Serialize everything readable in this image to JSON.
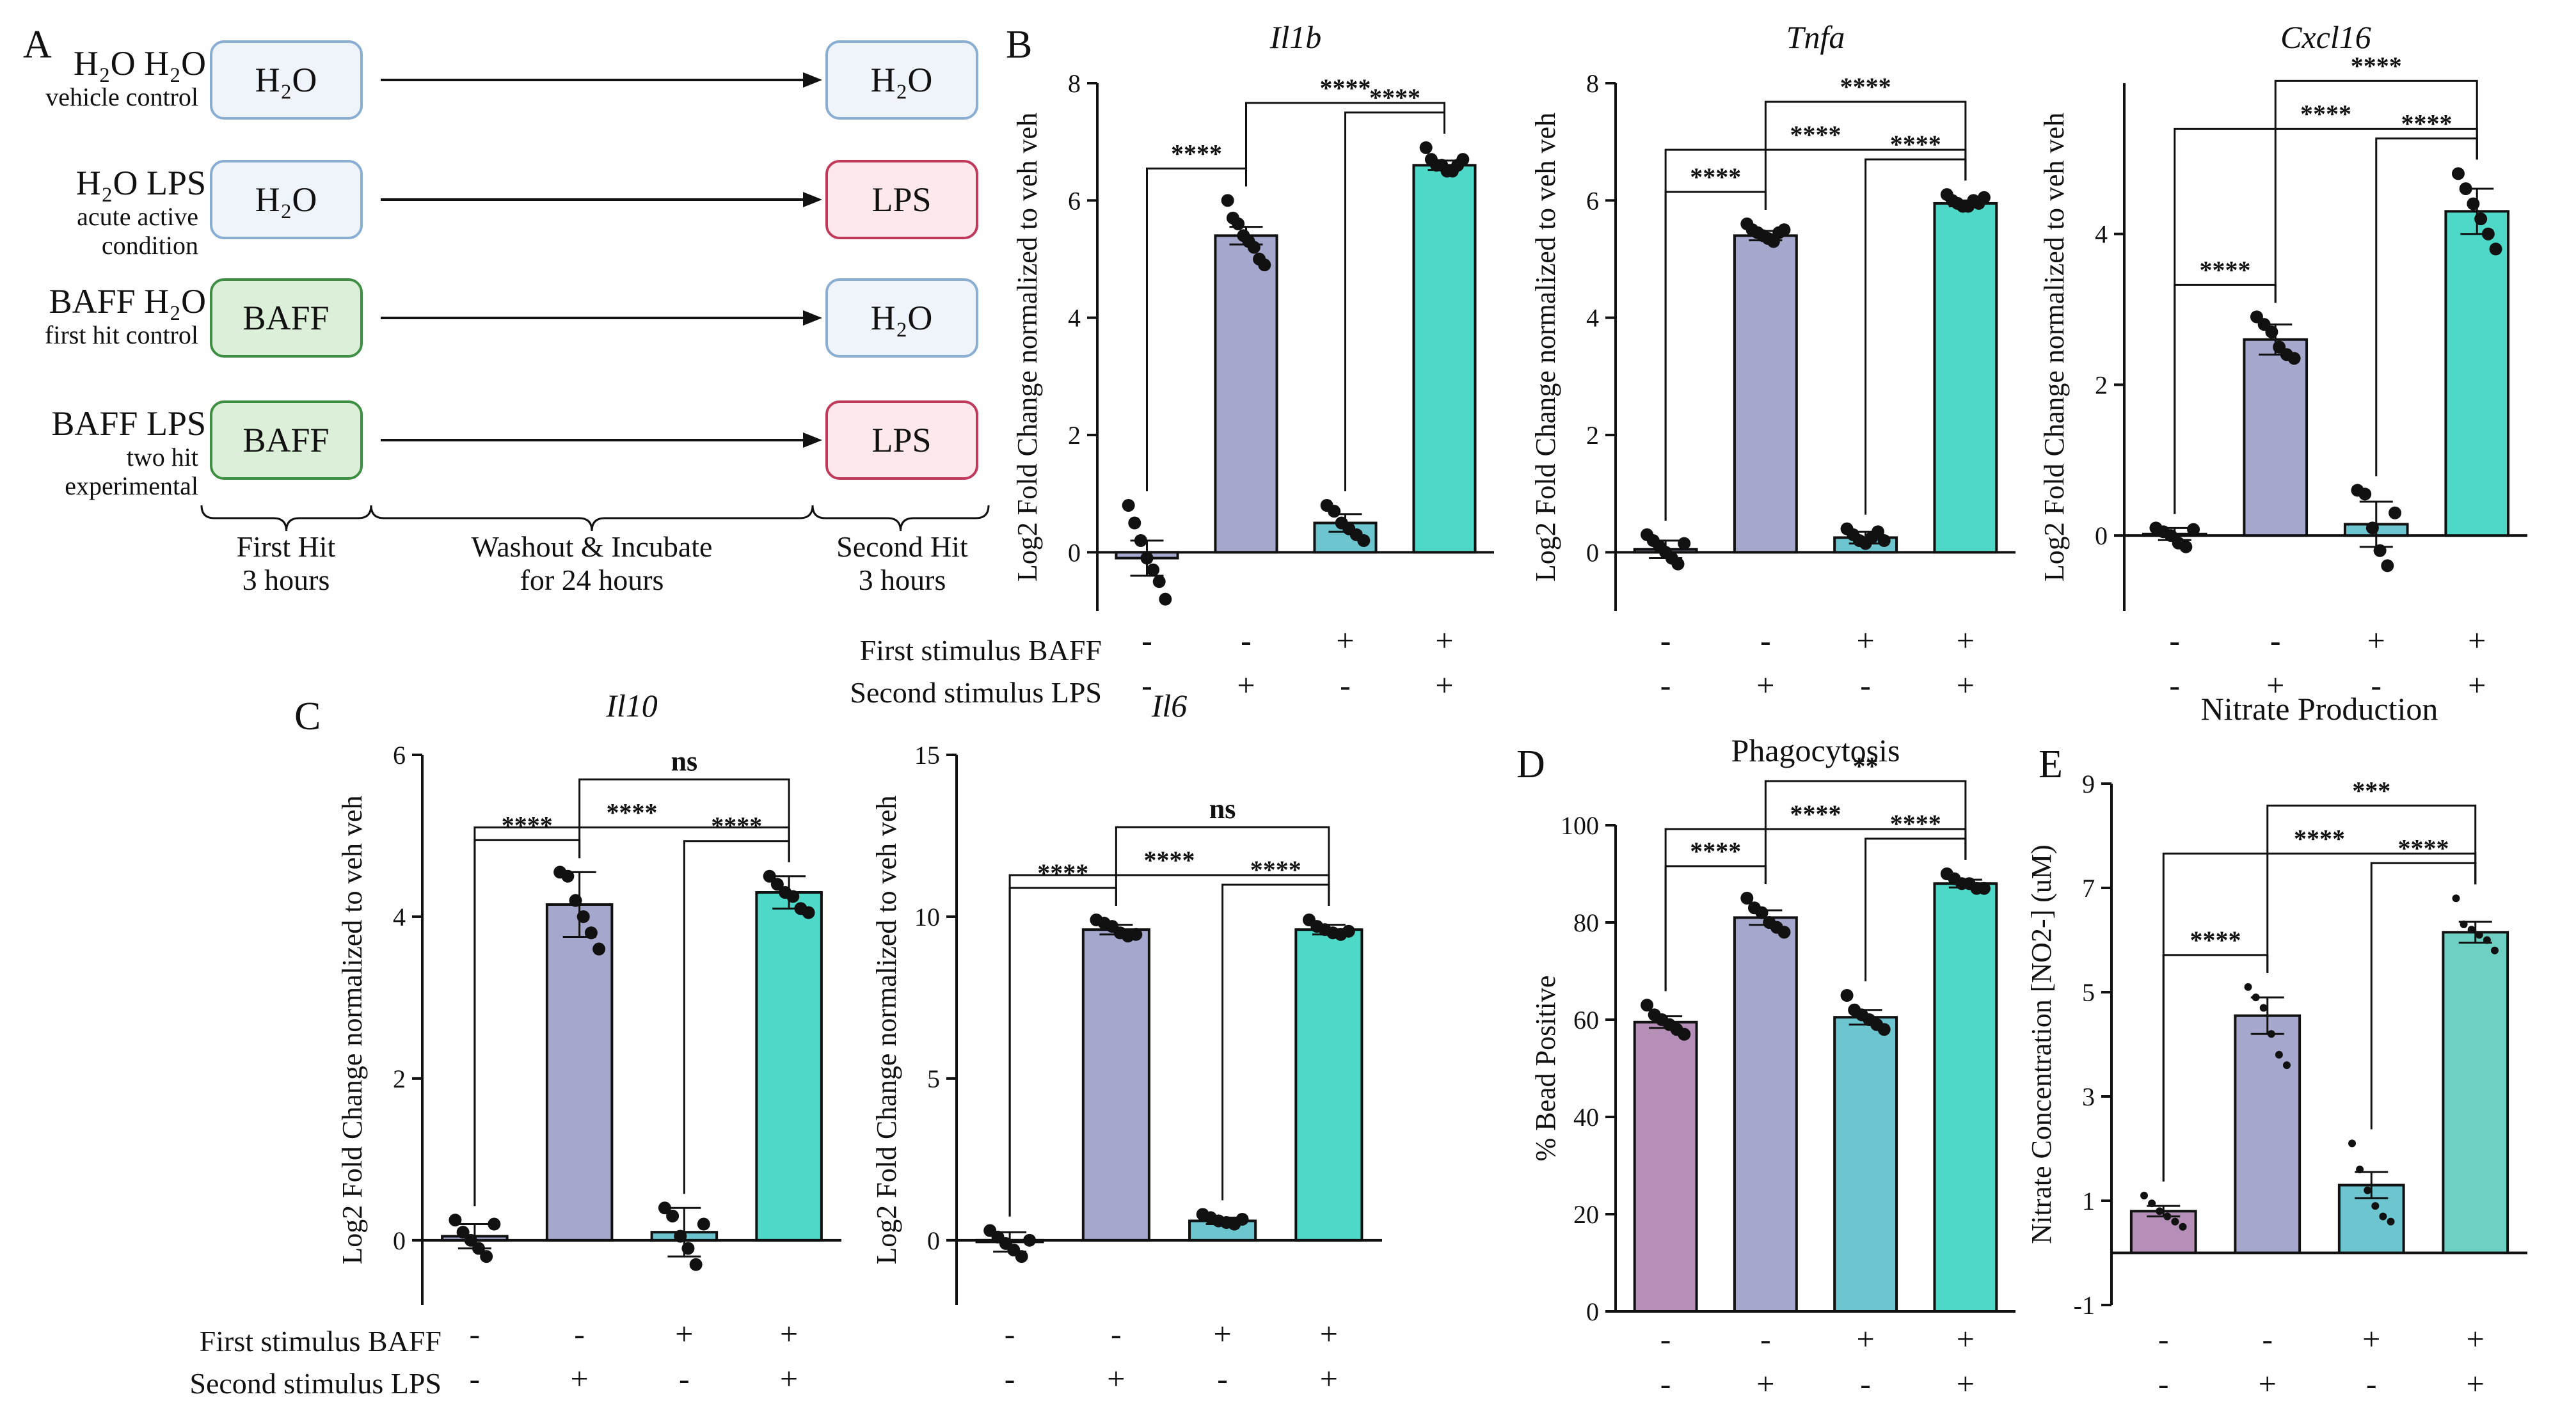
{
  "colors": {
    "h2o_fill": "#eef4fa",
    "h2o_stroke": "#8aaed2",
    "lps_fill": "#fde8ec",
    "lps_stroke": "#c0395a",
    "baff_fill": "#dcefd8",
    "baff_stroke": "#3e8e44",
    "bar_a": "#a5a7cc",
    "bar_b": "#6cc5cf",
    "bar_c": "#4ed8c8",
    "bar_purple": "#b68fb8",
    "bar_teal_soft": "#6ed0c2"
  },
  "panel_a": {
    "letter": "A",
    "rows": [
      {
        "cond": "H₂O H₂O",
        "desc": "vehicle control",
        "desc2": "",
        "first": "H₂O",
        "second": "H₂O",
        "first_kind": "h2o",
        "second_kind": "h2o"
      },
      {
        "cond": "H₂O LPS",
        "desc": "acute active",
        "desc2": "condition",
        "first": "H₂O",
        "second": "LPS",
        "first_kind": "h2o",
        "second_kind": "lps"
      },
      {
        "cond": "BAFF H₂O",
        "desc": "first hit control",
        "desc2": "",
        "first": "BAFF",
        "second": "H₂O",
        "first_kind": "baff",
        "second_kind": "h2o"
      },
      {
        "cond": "BAFF LPS",
        "desc": "two hit",
        "desc2": "experimental",
        "first": "BAFF",
        "second": "LPS",
        "first_kind": "baff",
        "second_kind": "lps"
      }
    ],
    "phases": [
      {
        "line1": "First Hit",
        "line2": "3 hours"
      },
      {
        "line1": "Washout & Incubate",
        "line2": "for 24 hours"
      },
      {
        "line1": "Second Hit",
        "line2": "3 hours"
      }
    ]
  },
  "labels": {
    "panel_b": "B",
    "panel_c": "C",
    "panel_d": "D",
    "panel_e": "E",
    "row1_label": "First stimulus BAFF",
    "row2_label": "Second stimulus LPS",
    "first_signs": [
      "-",
      "-",
      "+",
      "+"
    ],
    "second_signs": [
      "-",
      "+",
      "-",
      "+"
    ]
  },
  "chart_data": [
    {
      "id": "il1b",
      "type": "bar",
      "title": "Il1b",
      "title_italic": true,
      "ylabel": "Log2 Fold Change normalized to veh veh",
      "categories": [
        "BAFF- LPS-",
        "BAFF- LPS+",
        "BAFF+ LPS-",
        "BAFF+ LPS+"
      ],
      "values": [
        -0.1,
        5.4,
        0.5,
        6.6
      ],
      "errors": [
        0.3,
        0.15,
        0.15,
        0.08
      ],
      "ylim": [
        -1,
        8
      ],
      "yticks": [
        0,
        2,
        4,
        6,
        8
      ],
      "yticklabels": [
        "0",
        "2",
        "4",
        "6",
        "8"
      ],
      "zero_line": 0,
      "points": [
        [
          0.8,
          0.5,
          0.2,
          -0.1,
          -0.3,
          -0.5,
          -0.8
        ],
        [
          6.0,
          5.7,
          5.6,
          5.4,
          5.3,
          5.2,
          5.0,
          4.9
        ],
        [
          0.8,
          0.7,
          0.5,
          0.4,
          0.3,
          0.2
        ],
        [
          6.9,
          6.7,
          6.6,
          6.6,
          6.5,
          6.5,
          6.6,
          6.7
        ]
      ],
      "brackets": [
        {
          "a": 0,
          "b": 1,
          "label": "****"
        },
        {
          "a": 1,
          "b": 3,
          "label": "****"
        },
        {
          "a": 2,
          "b": 3,
          "label": "****"
        }
      ]
    },
    {
      "id": "tnfa",
      "type": "bar",
      "title": "Tnfa",
      "title_italic": true,
      "ylabel": "Log2 Fold Change normalized to veh veh",
      "categories": [
        "BAFF- LPS-",
        "BAFF- LPS+",
        "BAFF+ LPS-",
        "BAFF+ LPS+"
      ],
      "values": [
        0.05,
        5.4,
        0.25,
        5.95
      ],
      "errors": [
        0.15,
        0.08,
        0.1,
        0.05
      ],
      "ylim": [
        -1,
        8
      ],
      "yticks": [
        0,
        2,
        4,
        6,
        8
      ],
      "yticklabels": [
        "0",
        "2",
        "4",
        "6",
        "8"
      ],
      "zero_line": 0,
      "points": [
        [
          0.3,
          0.2,
          0.1,
          0.0,
          -0.1,
          -0.2,
          0.15
        ],
        [
          5.6,
          5.5,
          5.45,
          5.4,
          5.35,
          5.3,
          5.45,
          5.5
        ],
        [
          0.4,
          0.3,
          0.2,
          0.15,
          0.25,
          0.35,
          0.2
        ],
        [
          6.1,
          6.0,
          5.95,
          5.9,
          5.9,
          6.0,
          5.95,
          6.05
        ]
      ],
      "brackets": [
        {
          "a": 0,
          "b": 1,
          "label": "****"
        },
        {
          "a": 0,
          "b": 3,
          "label": "****"
        },
        {
          "a": 1,
          "b": 3,
          "label": "****"
        },
        {
          "a": 2,
          "b": 3,
          "label": "****"
        }
      ]
    },
    {
      "id": "cxcl16",
      "type": "bar",
      "title": "Cxcl16",
      "title_italic": true,
      "ylabel": "Log2 Fold Change normalized to veh veh",
      "categories": [
        "BAFF- LPS-",
        "BAFF- LPS+",
        "BAFF+ LPS-",
        "BAFF+ LPS+"
      ],
      "values": [
        0.02,
        2.6,
        0.15,
        4.3
      ],
      "errors": [
        0.08,
        0.2,
        0.3,
        0.3
      ],
      "ylim": [
        -1,
        6
      ],
      "yticks": [
        0,
        2,
        4
      ],
      "yticklabels": [
        "0",
        "2",
        "4"
      ],
      "zero_line": 0,
      "points": [
        [
          0.1,
          0.05,
          0.0,
          -0.1,
          -0.15,
          0.08
        ],
        [
          2.9,
          2.8,
          2.7,
          2.5,
          2.4,
          2.35
        ],
        [
          0.6,
          0.55,
          0.1,
          -0.2,
          -0.4,
          0.3
        ],
        [
          4.8,
          4.6,
          4.4,
          4.2,
          4.0,
          3.8
        ]
      ],
      "brackets": [
        {
          "a": 0,
          "b": 1,
          "label": "****"
        },
        {
          "a": 0,
          "b": 3,
          "label": "****"
        },
        {
          "a": 1,
          "b": 3,
          "label": "****"
        },
        {
          "a": 2,
          "b": 3,
          "label": "****"
        }
      ]
    },
    {
      "id": "il10",
      "type": "bar",
      "title": "Il10",
      "title_italic": true,
      "ylabel": "Log2 Fold Change normalized to veh veh",
      "categories": [
        "BAFF- LPS-",
        "BAFF- LPS+",
        "BAFF+ LPS-",
        "BAFF+ LPS+"
      ],
      "values": [
        0.05,
        4.15,
        0.1,
        4.3
      ],
      "errors": [
        0.15,
        0.4,
        0.3,
        0.2
      ],
      "ylim": [
        -0.8,
        6
      ],
      "yticks": [
        0,
        2,
        4,
        6
      ],
      "yticklabels": [
        "0",
        "2",
        "4",
        "6"
      ],
      "zero_line": 0,
      "points": [
        [
          0.25,
          0.1,
          0.0,
          -0.1,
          -0.2,
          0.2
        ],
        [
          4.55,
          4.5,
          4.2,
          4.0,
          3.8,
          3.6
        ],
        [
          0.4,
          0.3,
          0.05,
          -0.1,
          -0.3,
          0.2
        ],
        [
          4.5,
          4.4,
          4.3,
          4.25,
          4.1,
          4.05
        ]
      ],
      "brackets": [
        {
          "a": 0,
          "b": 1,
          "label": "****"
        },
        {
          "a": 0,
          "b": 3,
          "label": "****"
        },
        {
          "a": 1,
          "b": 3,
          "label": "ns"
        },
        {
          "a": 2,
          "b": 3,
          "label": "****"
        }
      ]
    },
    {
      "id": "il6",
      "type": "bar",
      "title": "Il6",
      "title_italic": true,
      "ylabel": "Log2 Fold Change normalized to veh veh",
      "categories": [
        "BAFF- LPS-",
        "BAFF- LPS+",
        "BAFF+ LPS-",
        "BAFF+ LPS+"
      ],
      "values": [
        -0.05,
        9.6,
        0.6,
        9.6
      ],
      "errors": [
        0.3,
        0.15,
        0.1,
        0.15
      ],
      "ylim": [
        -2,
        15
      ],
      "yticks": [
        0,
        5,
        10,
        15
      ],
      "yticklabels": [
        "0",
        "5",
        "10",
        "15"
      ],
      "zero_line": 0,
      "points": [
        [
          0.3,
          0.1,
          -0.1,
          -0.3,
          -0.5,
          0.0
        ],
        [
          9.9,
          9.8,
          9.7,
          9.5,
          9.4,
          9.45
        ],
        [
          0.8,
          0.7,
          0.6,
          0.55,
          0.5,
          0.65
        ],
        [
          9.9,
          9.7,
          9.6,
          9.5,
          9.45,
          9.55
        ]
      ],
      "brackets": [
        {
          "a": 0,
          "b": 1,
          "label": "****"
        },
        {
          "a": 0,
          "b": 3,
          "label": "****"
        },
        {
          "a": 1,
          "b": 3,
          "label": "ns"
        },
        {
          "a": 2,
          "b": 3,
          "label": "****"
        }
      ]
    },
    {
      "id": "phago",
      "type": "bar",
      "title": "Phagocytosis",
      "title_italic": false,
      "ylabel": "% Bead Positive",
      "categories": [
        "BAFF- LPS-",
        "BAFF- LPS+",
        "BAFF+ LPS-",
        "BAFF+ LPS+"
      ],
      "values": [
        59.5,
        81,
        60.5,
        88
      ],
      "errors": [
        1.2,
        1.5,
        1.5,
        0.8
      ],
      "ylim": [
        0,
        100
      ],
      "yticks": [
        0,
        20,
        40,
        60,
        80,
        100
      ],
      "yticklabels": [
        "0",
        "20",
        "40",
        "60",
        "80",
        "100"
      ],
      "zero_line": 0,
      "points": [
        [
          63,
          61,
          60,
          59,
          58,
          57
        ],
        [
          85,
          83,
          82,
          80,
          79,
          78
        ],
        [
          65,
          62,
          61,
          60,
          59,
          58
        ],
        [
          90,
          89,
          88,
          88,
          87,
          87
        ]
      ],
      "brackets": [
        {
          "a": 0,
          "b": 1,
          "label": "****"
        },
        {
          "a": 0,
          "b": 3,
          "label": "****"
        },
        {
          "a": 1,
          "b": 3,
          "label": "**"
        },
        {
          "a": 2,
          "b": 3,
          "label": "****"
        }
      ]
    },
    {
      "id": "nitrate",
      "type": "bar",
      "title": "Nitrate Production",
      "title_italic": false,
      "ylabel": "Nitrate Concentration [NO2-] (uM)",
      "categories": [
        "BAFF- LPS-",
        "BAFF- LPS+",
        "BAFF+ LPS-",
        "BAFF+ LPS+"
      ],
      "values": [
        0.8,
        4.55,
        1.3,
        6.15
      ],
      "errors": [
        0.1,
        0.35,
        0.25,
        0.2
      ],
      "ylim": [
        -1,
        9
      ],
      "yticks": [
        -1,
        1,
        3,
        5,
        7,
        9
      ],
      "yticklabels": [
        "-1",
        "1",
        "3",
        "5",
        "7",
        "9"
      ],
      "zero_line": 0,
      "points": [
        [
          1.1,
          0.95,
          0.8,
          0.7,
          0.6,
          0.5
        ],
        [
          5.1,
          4.9,
          4.7,
          4.2,
          3.8,
          3.6
        ],
        [
          2.1,
          1.6,
          1.2,
          0.9,
          0.7,
          0.6
        ],
        [
          6.8,
          6.3,
          6.2,
          6.1,
          6.0,
          5.8
        ]
      ],
      "brackets": [
        {
          "a": 0,
          "b": 1,
          "label": "****"
        },
        {
          "a": 0,
          "b": 3,
          "label": "****"
        },
        {
          "a": 1,
          "b": 3,
          "label": "***"
        },
        {
          "a": 2,
          "b": 3,
          "label": "****"
        }
      ]
    }
  ]
}
